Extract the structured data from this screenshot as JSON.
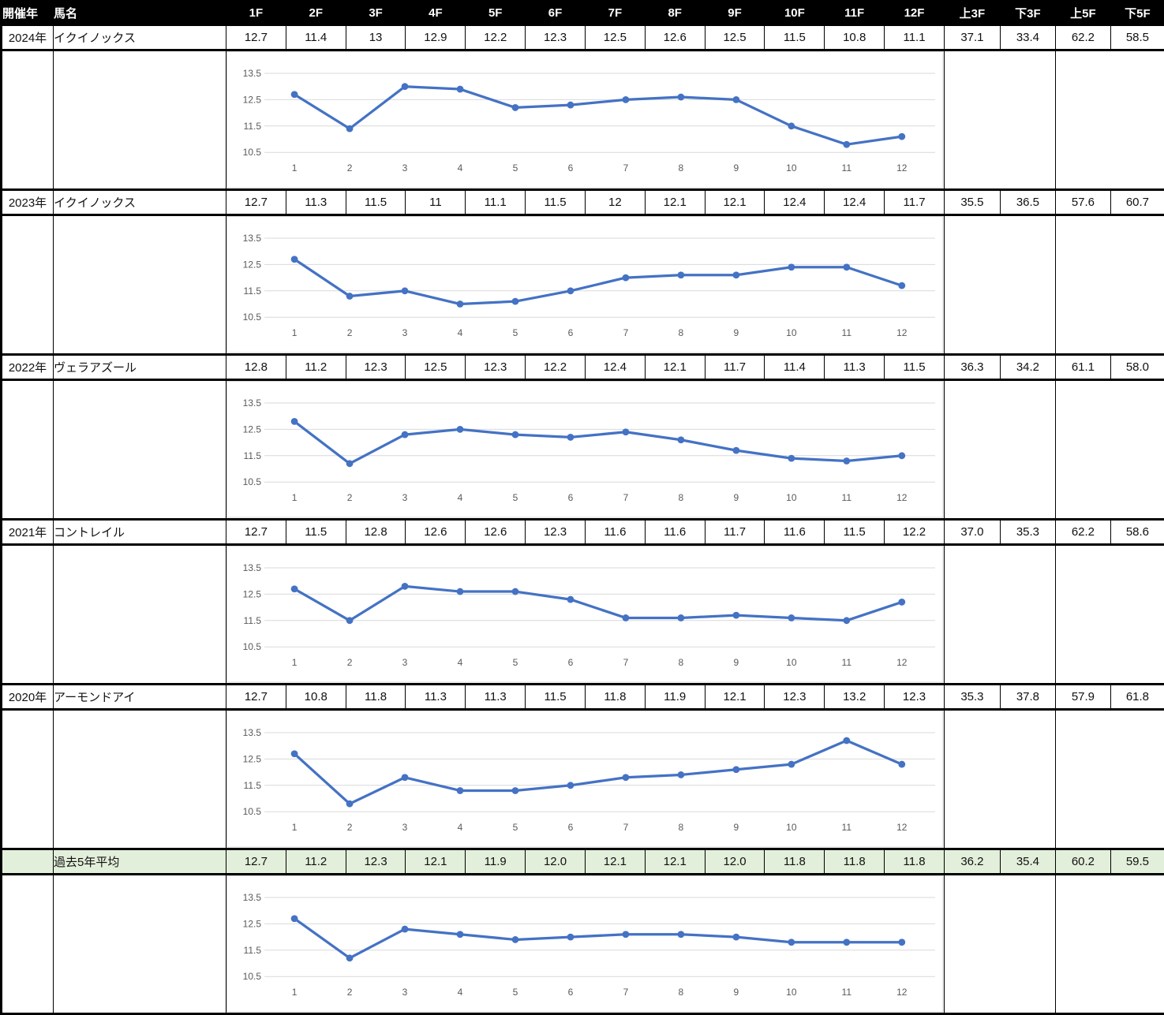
{
  "colors": {
    "header_bg": "#000000",
    "header_text": "#ffffff",
    "table_border": "#000000",
    "highlight_bg": "#e2efda",
    "chart_line": "#4472c4",
    "chart_grid": "#d9d9d9",
    "chart_text": "#595959",
    "chart_border": "#d9d9d9"
  },
  "table": {
    "columns": [
      "開催年",
      "馬名",
      "1F",
      "2F",
      "3F",
      "4F",
      "5F",
      "6F",
      "7F",
      "8F",
      "9F",
      "10F",
      "11F",
      "12F",
      "上3F",
      "下3F",
      "上5F",
      "下5F"
    ],
    "rows": [
      {
        "year": "2024年",
        "horse": "イクイノックス",
        "laps": [
          "12.7",
          "11.4",
          "13",
          "12.9",
          "12.2",
          "12.3",
          "12.5",
          "12.6",
          "12.5",
          "11.5",
          "10.8",
          "11.1"
        ],
        "sections": [
          "37.1",
          "33.4",
          "62.2",
          "58.5"
        ],
        "highlight": false
      },
      {
        "year": "2023年",
        "horse": "イクイノックス",
        "laps": [
          "12.7",
          "11.3",
          "11.5",
          "11",
          "11.1",
          "11.5",
          "12",
          "12.1",
          "12.1",
          "12.4",
          "12.4",
          "11.7"
        ],
        "sections": [
          "35.5",
          "36.5",
          "57.6",
          "60.7"
        ],
        "highlight": false
      },
      {
        "year": "2022年",
        "horse": "ヴェラアズール",
        "laps": [
          "12.8",
          "11.2",
          "12.3",
          "12.5",
          "12.3",
          "12.2",
          "12.4",
          "12.1",
          "11.7",
          "11.4",
          "11.3",
          "11.5"
        ],
        "sections": [
          "36.3",
          "34.2",
          "61.1",
          "58.0"
        ],
        "highlight": false
      },
      {
        "year": "2021年",
        "horse": "コントレイル",
        "laps": [
          "12.7",
          "11.5",
          "12.8",
          "12.6",
          "12.6",
          "12.3",
          "11.6",
          "11.6",
          "11.7",
          "11.6",
          "11.5",
          "12.2"
        ],
        "sections": [
          "37.0",
          "35.3",
          "62.2",
          "58.6"
        ],
        "highlight": false
      },
      {
        "year": "2020年",
        "horse": "アーモンドアイ",
        "laps": [
          "12.7",
          "10.8",
          "11.8",
          "11.3",
          "11.3",
          "11.5",
          "11.8",
          "11.9",
          "12.1",
          "12.3",
          "13.2",
          "12.3"
        ],
        "sections": [
          "35.3",
          "37.8",
          "57.9",
          "61.8"
        ],
        "highlight": false
      },
      {
        "year": "",
        "horse": "過去5年平均",
        "laps": [
          "12.7",
          "11.2",
          "12.3",
          "12.1",
          "11.9",
          "12.0",
          "12.1",
          "12.1",
          "12.0",
          "11.8",
          "11.8",
          "11.8"
        ],
        "sections": [
          "36.2",
          "35.4",
          "60.2",
          "59.5"
        ],
        "highlight": true
      }
    ]
  },
  "chart_data": [
    {
      "type": "line",
      "name": "2024年 イクイノックス",
      "x": [
        1,
        2,
        3,
        4,
        5,
        6,
        7,
        8,
        9,
        10,
        11,
        12
      ],
      "values": [
        12.7,
        11.4,
        13.0,
        12.9,
        12.2,
        12.3,
        12.5,
        12.6,
        12.5,
        11.5,
        10.8,
        11.1
      ],
      "y_ticks": [
        13.5,
        12.5,
        11.5,
        10.5
      ],
      "ylim": [
        10.1,
        13.9
      ],
      "grid": true,
      "marker": "circle",
      "line_color": "#4472c4",
      "legend": "none",
      "xlabel": "",
      "ylabel": ""
    },
    {
      "type": "line",
      "name": "2023年 イクイノックス",
      "x": [
        1,
        2,
        3,
        4,
        5,
        6,
        7,
        8,
        9,
        10,
        11,
        12
      ],
      "values": [
        12.7,
        11.3,
        11.5,
        11.0,
        11.1,
        11.5,
        12.0,
        12.1,
        12.1,
        12.4,
        12.4,
        11.7
      ],
      "y_ticks": [
        13.5,
        12.5,
        11.5,
        10.5
      ],
      "ylim": [
        10.1,
        13.9
      ],
      "grid": true,
      "marker": "circle",
      "line_color": "#4472c4",
      "legend": "none",
      "xlabel": "",
      "ylabel": ""
    },
    {
      "type": "line",
      "name": "2022年 ヴェラアズール",
      "x": [
        1,
        2,
        3,
        4,
        5,
        6,
        7,
        8,
        9,
        10,
        11,
        12
      ],
      "values": [
        12.8,
        11.2,
        12.3,
        12.5,
        12.3,
        12.2,
        12.4,
        12.1,
        11.7,
        11.4,
        11.3,
        11.5
      ],
      "y_ticks": [
        13.5,
        12.5,
        11.5,
        10.5
      ],
      "ylim": [
        10.1,
        13.9
      ],
      "grid": true,
      "marker": "circle",
      "line_color": "#4472c4",
      "legend": "none",
      "xlabel": "",
      "ylabel": ""
    },
    {
      "type": "line",
      "name": "2021年 コントレイル",
      "x": [
        1,
        2,
        3,
        4,
        5,
        6,
        7,
        8,
        9,
        10,
        11,
        12
      ],
      "values": [
        12.7,
        11.5,
        12.8,
        12.6,
        12.6,
        12.3,
        11.6,
        11.6,
        11.7,
        11.6,
        11.5,
        12.2
      ],
      "y_ticks": [
        13.5,
        12.5,
        11.5,
        10.5
      ],
      "ylim": [
        10.1,
        13.9
      ],
      "grid": true,
      "marker": "circle",
      "line_color": "#4472c4",
      "legend": "none",
      "xlabel": "",
      "ylabel": ""
    },
    {
      "type": "line",
      "name": "2020年 アーモンドアイ",
      "x": [
        1,
        2,
        3,
        4,
        5,
        6,
        7,
        8,
        9,
        10,
        11,
        12
      ],
      "values": [
        12.7,
        10.8,
        11.8,
        11.3,
        11.3,
        11.5,
        11.8,
        11.9,
        12.1,
        12.3,
        13.2,
        12.3
      ],
      "y_ticks": [
        13.5,
        12.5,
        11.5,
        10.5
      ],
      "ylim": [
        10.1,
        13.9
      ],
      "grid": true,
      "marker": "circle",
      "line_color": "#4472c4",
      "legend": "none",
      "xlabel": "",
      "ylabel": ""
    },
    {
      "type": "line",
      "name": "過去5年平均",
      "x": [
        1,
        2,
        3,
        4,
        5,
        6,
        7,
        8,
        9,
        10,
        11,
        12
      ],
      "values": [
        12.7,
        11.2,
        12.3,
        12.1,
        11.9,
        12.0,
        12.1,
        12.1,
        12.0,
        11.8,
        11.8,
        11.8
      ],
      "y_ticks": [
        13.5,
        12.5,
        11.5,
        10.5
      ],
      "ylim": [
        10.1,
        13.9
      ],
      "grid": true,
      "marker": "circle",
      "line_color": "#4472c4",
      "legend": "none",
      "xlabel": "",
      "ylabel": ""
    }
  ]
}
